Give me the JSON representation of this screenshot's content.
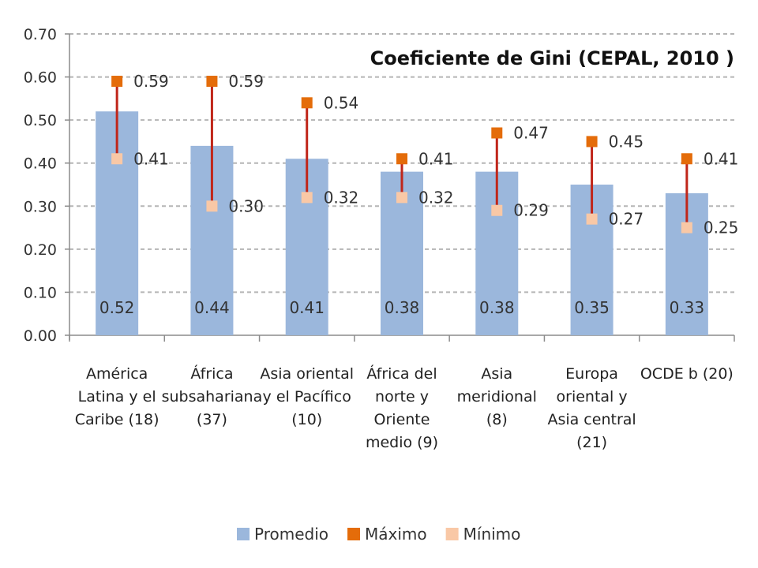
{
  "chart_data": {
    "type": "bar",
    "title": "Coeficiente de Gini (CEPAL, 2010 )",
    "categories": [
      [
        "América",
        "Latina y el",
        "Caribe (18)"
      ],
      [
        "África",
        "subsahariana",
        "(37)"
      ],
      [
        "Asia oriental",
        "y el Pacífico",
        "(10)"
      ],
      [
        "África del",
        "norte y",
        "Oriente",
        "medio (9)"
      ],
      [
        "Asia",
        "meridional",
        "(8)"
      ],
      [
        "Europa",
        "oriental y",
        "Asia central",
        "(21)"
      ],
      [
        "OCDE b (20)"
      ]
    ],
    "series": [
      {
        "name": "Promedio",
        "values": [
          0.52,
          0.44,
          0.41,
          0.38,
          0.38,
          0.35,
          0.33
        ],
        "labels": [
          "0.52",
          "0.44",
          "0.41",
          "0.38",
          "0.38",
          "0.35",
          "0.33"
        ]
      },
      {
        "name": "Máximo",
        "values": [
          0.59,
          0.59,
          0.54,
          0.41,
          0.47,
          0.45,
          0.41
        ],
        "labels": [
          "0.59",
          "0.59",
          "0.54",
          "0.41",
          "0.47",
          "0.45",
          "0.41"
        ]
      },
      {
        "name": "Mínimo",
        "values": [
          0.41,
          0.3,
          0.32,
          0.32,
          0.29,
          0.27,
          0.25
        ],
        "labels": [
          "0.41",
          "0.30",
          "0.32",
          "0.32",
          "0.29",
          "0.27",
          "0.25"
        ]
      }
    ],
    "yticks": [
      "0.00",
      "0.10",
      "0.20",
      "0.30",
      "0.40",
      "0.50",
      "0.60",
      "0.70"
    ],
    "ylim": [
      0,
      0.7
    ],
    "grid": true,
    "legend_position": "bottom",
    "colors": {
      "Promedio": "#9bb7dc",
      "Máximo": "#e46c0a",
      "Mínimo": "#f9c8a6",
      "whisker": "#c0261a",
      "grid": "#b5b5b5",
      "axis": "#8c8c8c"
    }
  }
}
